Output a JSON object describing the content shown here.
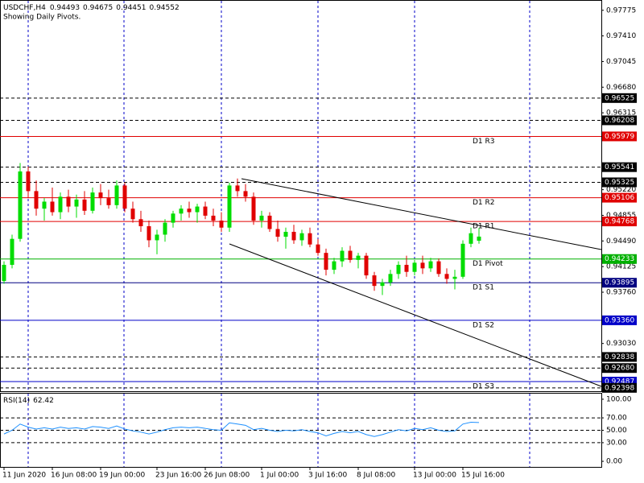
{
  "chart_data": {
    "type": "candlestick",
    "symbol": "USDCHF,H4",
    "subtitle": "Showing Daily Pivots.",
    "categories": [
      "11 Jun 2020",
      null,
      null,
      null,
      null,
      null,
      "16 Jun 08:00",
      null,
      null,
      null,
      null,
      null,
      "19 Jun 00:00",
      null,
      null,
      null,
      null,
      null,
      null,
      "23 Jun 16:00",
      null,
      null,
      null,
      null,
      null,
      "26 Jun 08:00",
      null,
      null,
      null,
      null,
      null,
      null,
      "1 Jul 00:00",
      null,
      null,
      null,
      null,
      null,
      "3 Jul 16:00",
      null,
      null,
      null,
      null,
      null,
      "8 Jul 08:00",
      null,
      null,
      null,
      null,
      null,
      null,
      "13 Jul 00:00",
      null,
      null,
      null,
      null,
      null,
      "15 Jul 16:00",
      null,
      null
    ],
    "open": [
      0.9392,
      0.9415,
      0.9452,
      0.9548,
      0.952,
      0.9495,
      0.9505,
      0.949,
      0.9512,
      0.9498,
      0.9508,
      0.9492,
      0.9518,
      0.951,
      0.95,
      0.9528,
      0.9495,
      0.948,
      0.947,
      0.945,
      0.9458,
      0.9475,
      0.9488,
      0.9495,
      0.949,
      0.9498,
      0.9485,
      0.9478,
      0.9468,
      0.9528,
      0.952,
      0.9512,
      0.9478,
      0.9485,
      0.9466,
      0.9455,
      0.9462,
      0.945,
      0.946,
      0.9444,
      0.9432,
      0.9408,
      0.942,
      0.9435,
      0.9422,
      0.9428,
      0.94,
      0.9385,
      0.939,
      0.9402,
      0.9415,
      0.9405,
      0.9418,
      0.941,
      0.942,
      0.9402,
      0.9395,
      0.9398,
      0.9445,
      0.94493
    ],
    "high": [
      0.942,
      0.9458,
      0.956,
      0.9555,
      0.9535,
      0.951,
      0.9525,
      0.9518,
      0.9522,
      0.9515,
      0.952,
      0.9525,
      0.953,
      0.9522,
      0.9535,
      0.9532,
      0.9505,
      0.9492,
      0.9478,
      0.9465,
      0.948,
      0.9492,
      0.95,
      0.9505,
      0.9502,
      0.9505,
      0.9495,
      0.949,
      0.9532,
      0.9538,
      0.953,
      0.9518,
      0.9492,
      0.949,
      0.9478,
      0.9468,
      0.9472,
      0.9465,
      0.9468,
      0.9452,
      0.9438,
      0.9425,
      0.944,
      0.9442,
      0.9432,
      0.9432,
      0.9405,
      0.9395,
      0.9408,
      0.942,
      0.9428,
      0.9422,
      0.9428,
      0.9425,
      0.9424,
      0.941,
      0.9408,
      0.945,
      0.9468,
      0.94675
    ],
    "low": [
      0.9388,
      0.941,
      0.9448,
      0.951,
      0.9485,
      0.9478,
      0.9485,
      0.948,
      0.949,
      0.9482,
      0.9486,
      0.9488,
      0.95,
      0.9495,
      0.9495,
      0.949,
      0.9475,
      0.9462,
      0.944,
      0.943,
      0.9448,
      0.9468,
      0.9478,
      0.9482,
      0.9475,
      0.948,
      0.947,
      0.9462,
      0.9462,
      0.9512,
      0.9505,
      0.9472,
      0.9468,
      0.9462,
      0.9448,
      0.9438,
      0.9445,
      0.9442,
      0.944,
      0.9428,
      0.94,
      0.9402,
      0.9412,
      0.9418,
      0.941,
      0.9395,
      0.9378,
      0.9372,
      0.9385,
      0.9395,
      0.9398,
      0.94,
      0.9402,
      0.9405,
      0.9398,
      0.9388,
      0.938,
      0.9395,
      0.944,
      0.94451
    ],
    "close": [
      0.9415,
      0.9452,
      0.9548,
      0.952,
      0.9495,
      0.9505,
      0.949,
      0.9512,
      0.9498,
      0.9508,
      0.9492,
      0.9518,
      0.951,
      0.95,
      0.9528,
      0.9495,
      0.948,
      0.947,
      0.945,
      0.9458,
      0.9475,
      0.9488,
      0.9495,
      0.949,
      0.9498,
      0.9485,
      0.9478,
      0.9468,
      0.9528,
      0.952,
      0.9512,
      0.9478,
      0.9485,
      0.9466,
      0.9455,
      0.9462,
      0.945,
      0.946,
      0.9444,
      0.9432,
      0.9408,
      0.942,
      0.9435,
      0.9422,
      0.9428,
      0.94,
      0.9385,
      0.939,
      0.9402,
      0.9415,
      0.9405,
      0.9418,
      0.941,
      0.942,
      0.9402,
      0.9395,
      0.9398,
      0.9445,
      0.946,
      0.94552
    ],
    "up_color": "#00dd00",
    "down_color": "#e00000",
    "ylim": [
      0.9235,
      0.9791
    ],
    "yticks": [
      0.97775,
      {
        "value": 0.9741,
        "label": "0.97410"
      },
      0.97045,
      {
        "value": 0.9668,
        "label": "0.96680"
      },
      0.96315,
      {
        "value": 0.9522,
        "label": "0.95220"
      },
      0.94855,
      {
        "value": 0.9449,
        "label": "0.94490"
      },
      0.94125,
      {
        "value": 0.9376,
        "label": "0.93760"
      },
      {
        "value": 0.9303,
        "label": "0.93030"
      }
    ],
    "levels": [
      {
        "price": 0.96525,
        "color": "#000000",
        "style": "dash"
      },
      {
        "price": 0.96208,
        "color": "#000000",
        "style": "dash"
      },
      {
        "price": 0.95979,
        "color": "#e00000",
        "style": "solid",
        "name": "D1  R3"
      },
      {
        "price": 0.95541,
        "color": "#000000",
        "style": "dash"
      },
      {
        "price": 0.95325,
        "color": "#000000",
        "style": "dash"
      },
      {
        "price": 0.95106,
        "color": "#e00000",
        "style": "solid",
        "name": "D1  R2"
      },
      {
        "price": 0.94768,
        "color": "#e00000",
        "style": "solid",
        "name": "D1  R1"
      },
      {
        "price": 0.94233,
        "color": "#00b000",
        "style": "solid",
        "name": "D1  Pivot"
      },
      {
        "price": 0.93895,
        "color": "#000080",
        "style": "solid",
        "name": "D1  S1"
      },
      {
        "price": 0.9336,
        "price_label": "0.93360",
        "color": "#0000c8",
        "style": "solid",
        "name": "D1  S2"
      },
      {
        "price": 0.92838,
        "color": "#000000",
        "style": "dash"
      },
      {
        "price": 0.9268,
        "price_label": "0.92680",
        "color": "#000000",
        "style": "dash"
      },
      {
        "price": 0.92487,
        "color": "#0000c8",
        "style": "solid",
        "name": "D1  S3"
      },
      {
        "price": 0.92398,
        "color": "#000000",
        "style": "dash"
      }
    ],
    "rsi": {
      "label": "RSI(14)",
      "color": "#1e90ff",
      "values": [
        44,
        50,
        60,
        55,
        52,
        54,
        52,
        55,
        53,
        54,
        52,
        56,
        55,
        53,
        57,
        52,
        49,
        47,
        44,
        47,
        51,
        54,
        55,
        54,
        55,
        53,
        51,
        50,
        62,
        60,
        58,
        51,
        53,
        50,
        48,
        50,
        49,
        51,
        48,
        46,
        41,
        45,
        48,
        46,
        48,
        43,
        40,
        43,
        47,
        51,
        49,
        53,
        51,
        54,
        50,
        48,
        49,
        60,
        63,
        62.42
      ],
      "ylim": [
        -9,
        109
      ],
      "yticks": [
        {
          "value": 100,
          "label": "100.00"
        },
        {
          "value": 70,
          "label": "70.00"
        },
        {
          "value": 50,
          "label": "50.00"
        },
        {
          "value": 30,
          "label": "30.00"
        },
        {
          "value": 0,
          "label": "0.00"
        }
      ]
    }
  }
}
